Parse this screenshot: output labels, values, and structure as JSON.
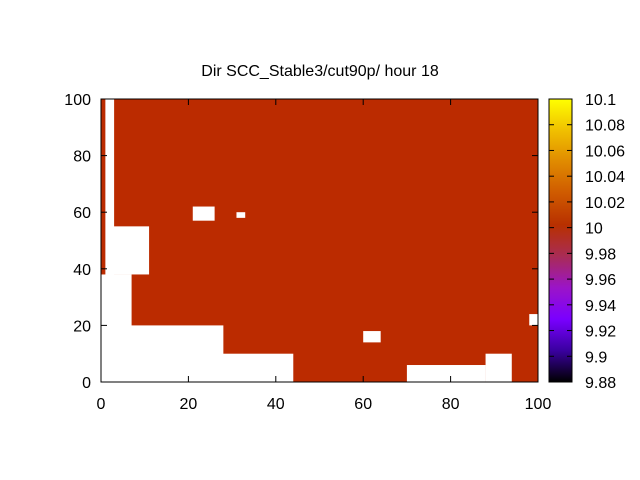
{
  "chart_data": {
    "type": "heatmap",
    "title": "Dir SCC_Stable3/cut90p/ hour 18",
    "xlabel": "",
    "ylabel": "",
    "xlim": [
      0,
      100
    ],
    "ylim": [
      0,
      100
    ],
    "x_ticks": [
      "0",
      "20",
      "40",
      "60",
      "80",
      "100"
    ],
    "y_ticks": [
      "0",
      "20",
      "40",
      "60",
      "80",
      "100"
    ],
    "colorbar": {
      "range": [
        9.88,
        10.1
      ],
      "ticks": [
        "10.1",
        "10.08",
        "10.06",
        "10.04",
        "10.02",
        "10",
        "9.98",
        "9.96",
        "9.94",
        "9.92",
        "9.9",
        "9.88"
      ],
      "palette": [
        "#000000",
        "#3a00a0",
        "#7a00ff",
        "#9b14c8",
        "#a92c55",
        "#b83000",
        "#cf5a00",
        "#e08a00",
        "#f0c000",
        "#ffff00"
      ]
    },
    "fill_value": 10.0,
    "fill_color": "#bb2b00",
    "missing_color": "#ffffff",
    "grid": false,
    "missing_regions": [
      {
        "x": [
          0,
          7
        ],
        "y": [
          0,
          38
        ],
        "note": "left edge gap"
      },
      {
        "x": [
          1,
          3
        ],
        "y": [
          0,
          100
        ],
        "note": "left column"
      },
      {
        "x": [
          2,
          11
        ],
        "y": [
          38,
          55
        ]
      },
      {
        "x": [
          1,
          28
        ],
        "y": [
          0,
          20
        ]
      },
      {
        "x": [
          18,
          44
        ],
        "y": [
          0,
          10
        ]
      },
      {
        "x": [
          28,
          34
        ],
        "y": [
          0,
          5
        ]
      },
      {
        "x": [
          60,
          64
        ],
        "y": [
          14,
          18
        ]
      },
      {
        "x": [
          70,
          88
        ],
        "y": [
          0,
          6
        ]
      },
      {
        "x": [
          88,
          94
        ],
        "y": [
          0,
          10
        ]
      },
      {
        "x": [
          98,
          100
        ],
        "y": [
          20,
          24
        ]
      },
      {
        "x": [
          21,
          26
        ],
        "y": [
          57,
          62
        ]
      },
      {
        "x": [
          31,
          33
        ],
        "y": [
          58,
          60
        ]
      }
    ]
  }
}
